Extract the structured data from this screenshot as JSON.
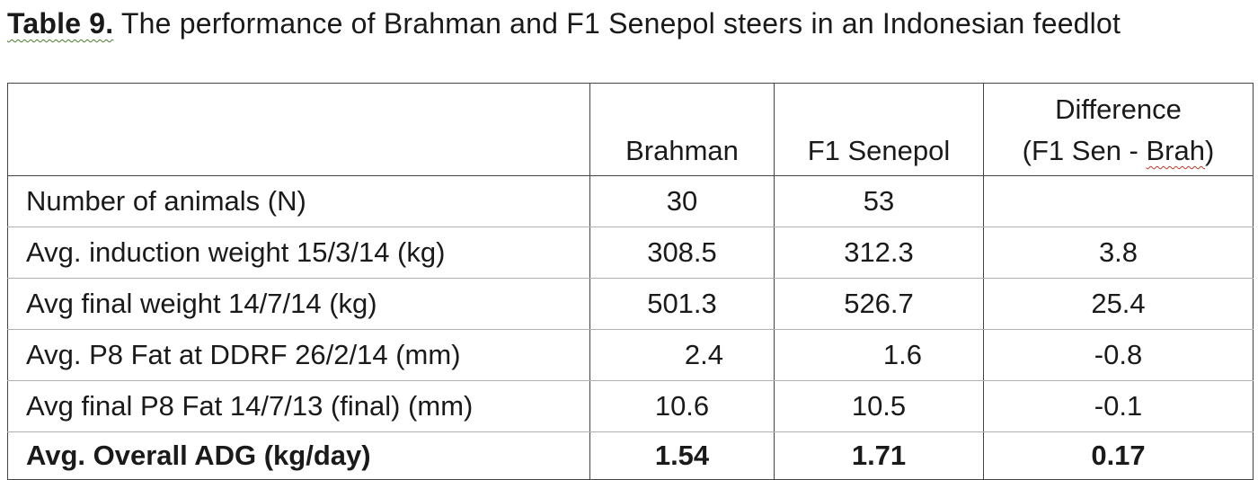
{
  "caption": {
    "label": "Table 9.",
    "text": " The performance of Brahman and F1 Senepol steers in an Indonesian feedlot"
  },
  "table": {
    "headers": {
      "brahman": "Brahman",
      "senepol": "F1 Senepol",
      "difference_line1": "Difference",
      "difference_line2_prefix": "(F1 Sen - ",
      "difference_line2_word": "Brah",
      "difference_line2_suffix": ")"
    },
    "rows": [
      {
        "label": "Number of animals (N)",
        "brahman": "30",
        "senepol": "53",
        "difference": ""
      },
      {
        "label": "Avg. induction weight 15/3/14 (kg)",
        "brahman": "308.5",
        "senepol": "312.3",
        "difference": "3.8"
      },
      {
        "label": "Avg final weight 14/7/14 (kg)",
        "brahman": "501.3",
        "senepol": "526.7",
        "difference": "25.4"
      },
      {
        "label": "Avg. P8 Fat at DDRF 26/2/14 (mm)",
        "brahman": "2.4",
        "senepol": "1.6",
        "difference": "-0.8"
      },
      {
        "label": "Avg final P8 Fat 14/7/13 (final) (mm)",
        "brahman": "10.6",
        "senepol": "10.5",
        "difference": "-0.1"
      },
      {
        "label": "Avg. Overall ADG (kg/day)",
        "brahman": "1.54",
        "senepol": "1.71",
        "difference": "0.17"
      }
    ]
  }
}
